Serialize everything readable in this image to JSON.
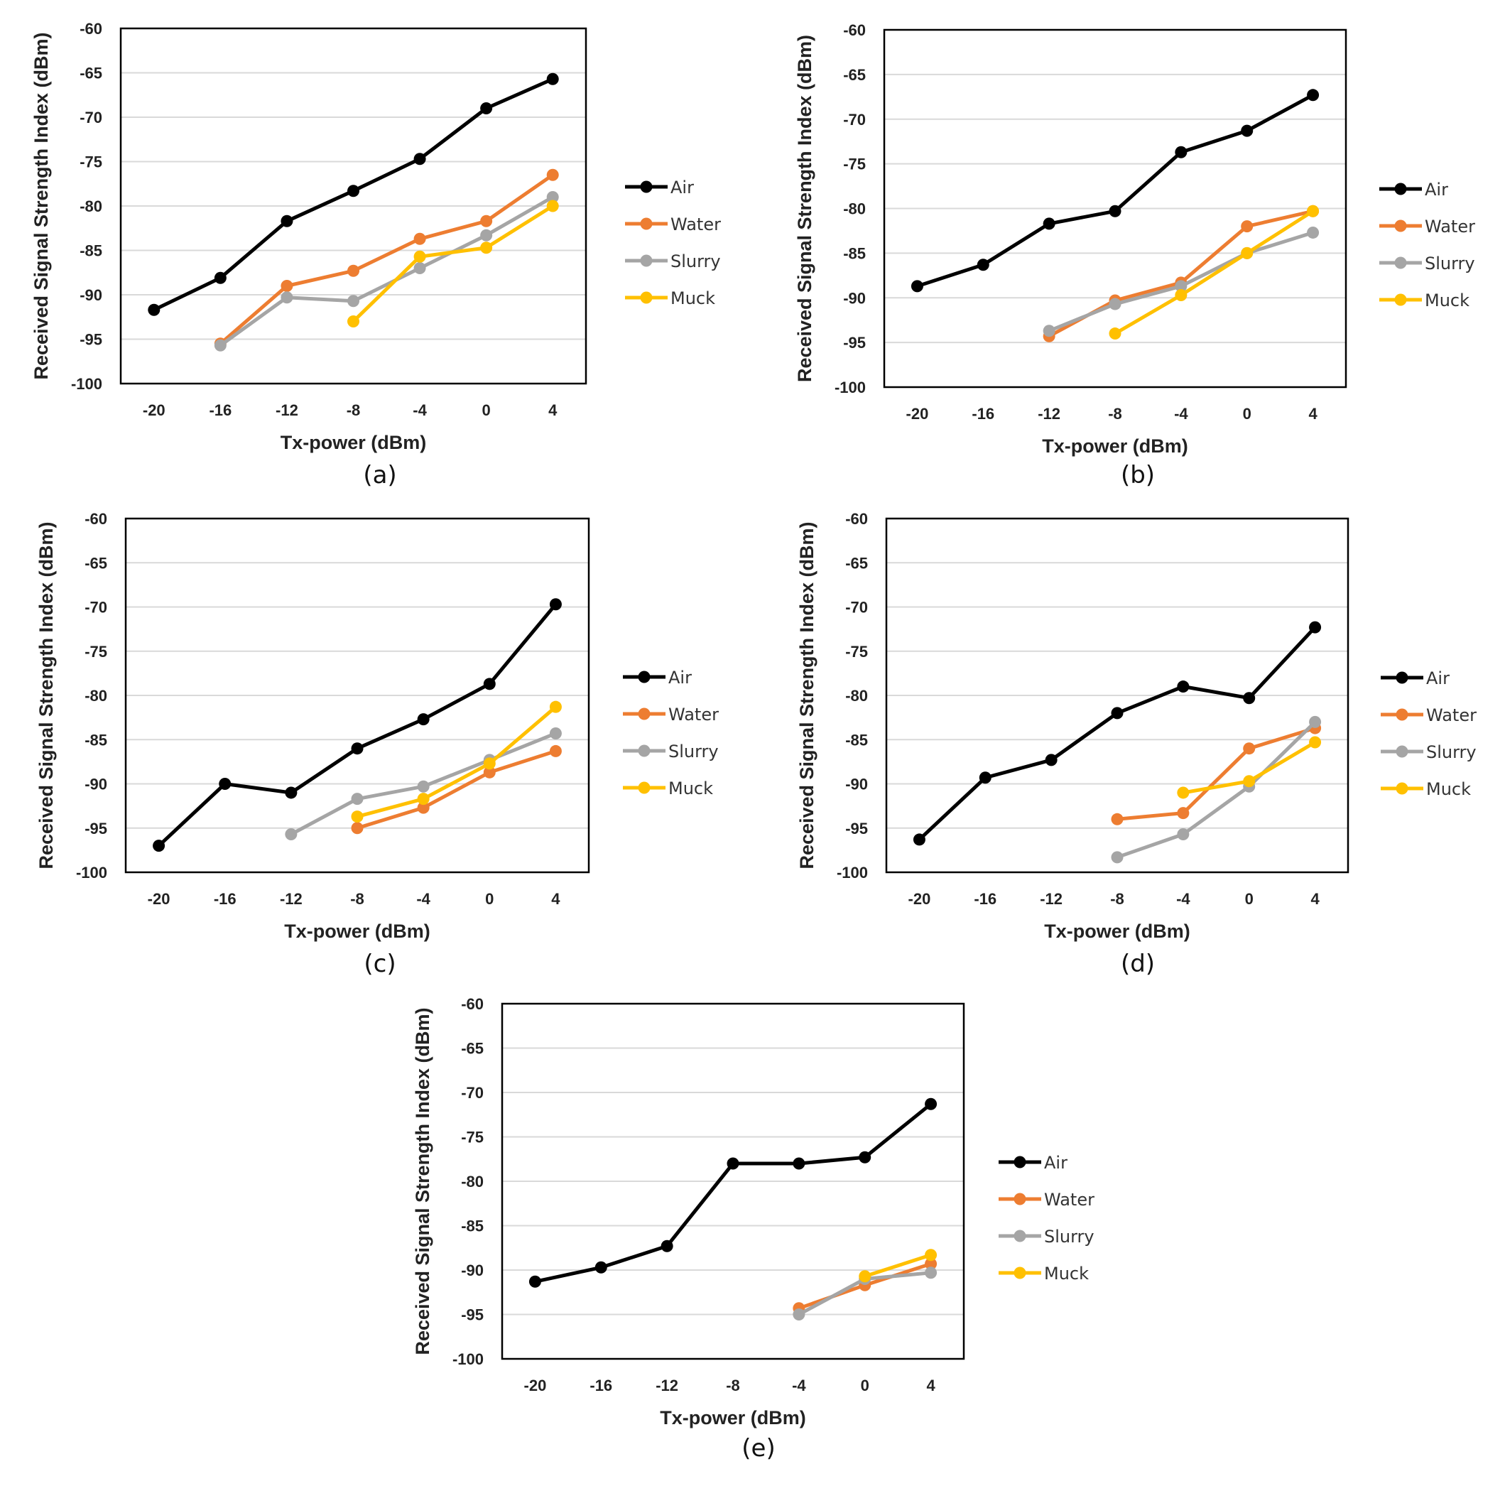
{
  "colors": {
    "Air": "#000000",
    "Water": "#ED7D31",
    "Slurry": "#A5A5A5",
    "Muck": "#FFC000",
    "grid": "#d9d9d9",
    "frame": "#000000"
  },
  "chart_data": [
    {
      "id": "a",
      "type": "line",
      "caption": "(a)",
      "xlabel": "Tx-power (dBm)",
      "ylabel": "Received Signal Strength Index (dBm)",
      "categories": [
        "-20",
        "-16",
        "-12",
        "-8",
        "-4",
        "0",
        "4"
      ],
      "ylim": [
        -100,
        -60
      ],
      "yticks": [
        "-60",
        "-65",
        "-70",
        "-75",
        "-80",
        "-85",
        "-90",
        "-95",
        "-100"
      ],
      "grid": true,
      "legend_position": "right",
      "series": [
        {
          "name": "Air",
          "values": [
            -91.7,
            -88.1,
            -81.7,
            -78.3,
            -74.7,
            -69.0,
            -65.7
          ]
        },
        {
          "name": "Water",
          "values": [
            null,
            -95.5,
            -89.0,
            -87.3,
            -83.7,
            -81.7,
            -76.5
          ]
        },
        {
          "name": "Slurry",
          "values": [
            null,
            -95.7,
            -90.3,
            -90.7,
            -87.0,
            -83.3,
            -79.0
          ]
        },
        {
          "name": "Muck",
          "values": [
            null,
            null,
            null,
            -93.0,
            -85.7,
            -84.7,
            -80.0
          ]
        }
      ]
    },
    {
      "id": "b",
      "type": "line",
      "caption": "(b)",
      "xlabel": "Tx-power (dBm)",
      "ylabel": "Received Signal Strength Index (dBm)",
      "categories": [
        "-20",
        "-16",
        "-12",
        "-8",
        "-4",
        "0",
        "4"
      ],
      "ylim": [
        -100,
        -60
      ],
      "yticks": [
        "-60",
        "-65",
        "-70",
        "-75",
        "-80",
        "-85",
        "-90",
        "-95",
        "-100"
      ],
      "grid": true,
      "legend_position": "right",
      "series": [
        {
          "name": "Air",
          "values": [
            -88.7,
            -86.3,
            -81.7,
            -80.3,
            -73.7,
            -71.3,
            -67.3
          ]
        },
        {
          "name": "Water",
          "values": [
            null,
            null,
            -94.3,
            -90.3,
            -88.3,
            -82.0,
            -80.3
          ]
        },
        {
          "name": "Slurry",
          "values": [
            null,
            null,
            -93.7,
            -90.7,
            -88.7,
            -85.0,
            -82.7
          ]
        },
        {
          "name": "Muck",
          "values": [
            null,
            null,
            null,
            -94.0,
            -89.7,
            -85.0,
            -80.3
          ]
        }
      ]
    },
    {
      "id": "c",
      "type": "line",
      "caption": "(c)",
      "xlabel": "Tx-power (dBm)",
      "ylabel": "Received Signal Strength Index (dBm)",
      "categories": [
        "-20",
        "-16",
        "-12",
        "-8",
        "-4",
        "0",
        "4"
      ],
      "ylim": [
        -100,
        -60
      ],
      "yticks": [
        "-60",
        "-65",
        "-70",
        "-75",
        "-80",
        "-85",
        "-90",
        "-95",
        "-100"
      ],
      "grid": true,
      "legend_position": "right",
      "series": [
        {
          "name": "Air",
          "values": [
            -97.0,
            -90.0,
            -91.0,
            -86.0,
            -82.7,
            -78.7,
            -69.7
          ]
        },
        {
          "name": "Water",
          "values": [
            null,
            null,
            null,
            -95.0,
            -92.7,
            -88.7,
            -86.3
          ]
        },
        {
          "name": "Slurry",
          "values": [
            null,
            null,
            -95.7,
            -91.7,
            -90.3,
            -87.3,
            -84.3
          ]
        },
        {
          "name": "Muck",
          "values": [
            null,
            null,
            null,
            -93.7,
            -91.7,
            -87.7,
            -81.3
          ]
        }
      ]
    },
    {
      "id": "d",
      "type": "line",
      "caption": "(d)",
      "xlabel": "Tx-power (dBm)",
      "ylabel": "Received Signal Strength Index (dBm)",
      "categories": [
        "-20",
        "-16",
        "-12",
        "-8",
        "-4",
        "0",
        "4"
      ],
      "ylim": [
        -100,
        -60
      ],
      "yticks": [
        "-60",
        "-65",
        "-70",
        "-75",
        "-80",
        "-85",
        "-90",
        "-95",
        "-100"
      ],
      "grid": true,
      "legend_position": "right",
      "series": [
        {
          "name": "Air",
          "values": [
            -96.3,
            -89.3,
            -87.3,
            -82.0,
            -79.0,
            -80.3,
            -72.3
          ]
        },
        {
          "name": "Water",
          "values": [
            null,
            null,
            null,
            -94.0,
            -93.3,
            -86.0,
            -83.7
          ]
        },
        {
          "name": "Slurry",
          "values": [
            null,
            null,
            null,
            -98.3,
            -95.7,
            -90.3,
            -83.0
          ]
        },
        {
          "name": "Muck",
          "values": [
            null,
            null,
            null,
            null,
            -91.0,
            -89.7,
            -85.3
          ]
        }
      ]
    },
    {
      "id": "e",
      "type": "line",
      "caption": "(e)",
      "xlabel": "Tx-power (dBm)",
      "ylabel": "Received Signal Strength Index (dBm)",
      "categories": [
        "-20",
        "-16",
        "-12",
        "-8",
        "-4",
        "0",
        "4"
      ],
      "ylim": [
        -100,
        -60
      ],
      "yticks": [
        "-60",
        "-65",
        "-70",
        "-75",
        "-80",
        "-85",
        "-90",
        "-95",
        "-100"
      ],
      "grid": true,
      "legend_position": "right",
      "series": [
        {
          "name": "Air",
          "values": [
            -91.3,
            -89.7,
            -87.3,
            -78.0,
            -78.0,
            -77.3,
            -71.3
          ]
        },
        {
          "name": "Water",
          "values": [
            null,
            null,
            null,
            null,
            -94.3,
            -91.7,
            -89.3
          ]
        },
        {
          "name": "Slurry",
          "values": [
            null,
            null,
            null,
            null,
            -95.0,
            -91.0,
            -90.3
          ]
        },
        {
          "name": "Muck",
          "values": [
            null,
            null,
            null,
            null,
            null,
            -90.7,
            -88.3
          ]
        }
      ]
    }
  ]
}
